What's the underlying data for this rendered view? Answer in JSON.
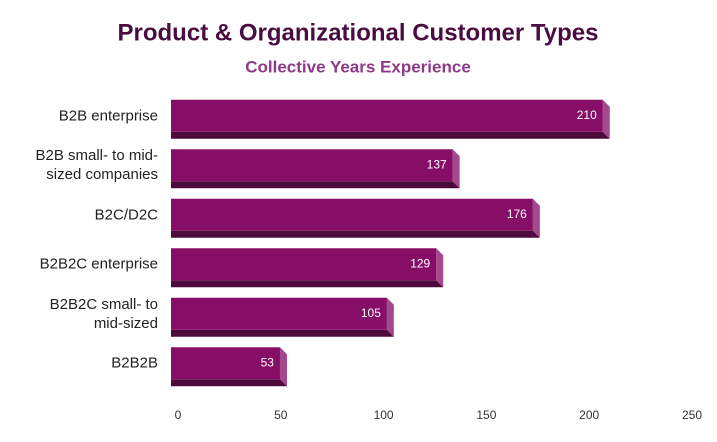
{
  "chart_data": {
    "type": "bar",
    "orientation": "horizontal",
    "title": "Product & Organizational Customer Types",
    "subtitle": "Collective Years Experience",
    "categories": [
      "B2B enterprise",
      "B2B small- to mid-sized companies",
      "B2C/D2C",
      "B2B2C enterprise",
      "B2B2C small- to mid-sized",
      "B2B2B"
    ],
    "values": [
      210,
      137,
      176,
      129,
      105,
      53
    ],
    "color": "#870e66",
    "xlim": [
      0,
      250
    ],
    "xticks": [
      0,
      50,
      100,
      150,
      200,
      250
    ],
    "grid": false
  }
}
